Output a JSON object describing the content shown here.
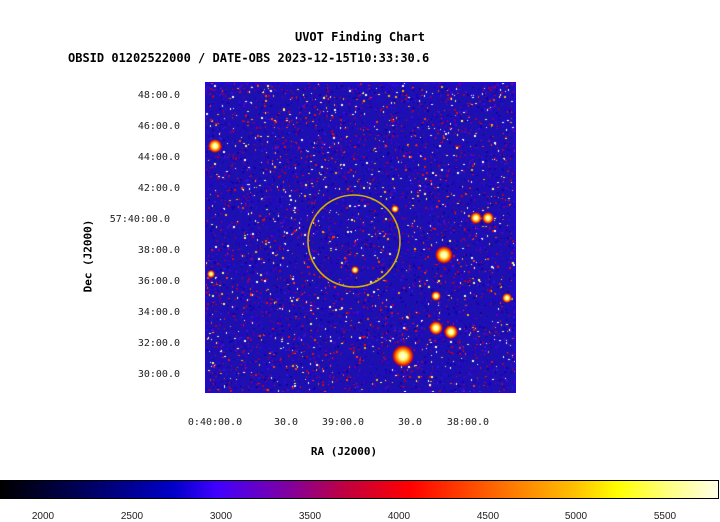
{
  "title": "UVOT Finding Chart",
  "subtitle": "OBSID 01202522000 / DATE-OBS 2023-12-15T10:33:30.6",
  "chart_data": {
    "type": "image",
    "xlabel": "RA (J2000)",
    "ylabel": "Dec (J2000)",
    "x_ticks": [
      "0:40:00.0",
      "30.0",
      "39:00.0",
      "30.0",
      "38:00.0"
    ],
    "y_ticks": [
      "48:00.0",
      "46:00.0",
      "44:00.0",
      "42:00.0",
      "57:40:00.0",
      "38:00.0",
      "36:00.0",
      "34:00.0",
      "32:00.0",
      "30:00.0"
    ],
    "colorbar_ticks": [
      "2000",
      "2500",
      "3000",
      "3500",
      "4000",
      "4500",
      "5000",
      "5500"
    ],
    "colormap_colors": [
      "#000000",
      "#0000c8",
      "#ff0000",
      "#ffff00",
      "#ffffe8"
    ],
    "marker_color": "#d4b100",
    "frame_color": "#2200ff"
  }
}
